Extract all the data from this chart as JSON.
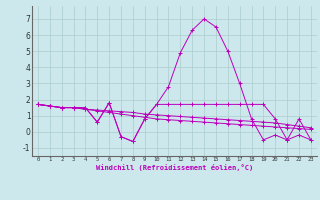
{
  "xlabel": "Windchill (Refroidissement éolien,°C)",
  "background_color": "#cce8ec",
  "grid_color": "#aacccc",
  "line_color": "#bb00bb",
  "x_data": [
    0,
    1,
    2,
    3,
    4,
    5,
    6,
    7,
    8,
    9,
    10,
    11,
    12,
    13,
    14,
    15,
    16,
    17,
    18,
    19,
    20,
    21,
    22,
    23
  ],
  "series": [
    [
      1.7,
      1.6,
      1.5,
      1.5,
      1.5,
      0.6,
      1.8,
      -0.3,
      -0.6,
      0.8,
      1.7,
      2.8,
      4.9,
      6.3,
      7.0,
      6.5,
      5.0,
      3.0,
      0.8,
      -0.5,
      -0.2,
      -0.5,
      0.8,
      -0.5
    ],
    [
      1.7,
      1.6,
      1.5,
      1.5,
      1.5,
      0.6,
      1.8,
      -0.3,
      -0.6,
      0.8,
      1.7,
      1.7,
      1.7,
      1.7,
      1.7,
      1.7,
      1.7,
      1.7,
      1.7,
      1.7,
      0.8,
      -0.5,
      -0.2,
      -0.5
    ],
    [
      1.7,
      1.6,
      1.5,
      1.5,
      1.4,
      1.3,
      1.2,
      1.1,
      1.0,
      0.9,
      0.8,
      0.75,
      0.7,
      0.65,
      0.6,
      0.55,
      0.5,
      0.45,
      0.4,
      0.35,
      0.3,
      0.25,
      0.2,
      0.15
    ],
    [
      1.7,
      1.6,
      1.5,
      1.5,
      1.4,
      1.35,
      1.3,
      1.25,
      1.2,
      1.1,
      1.05,
      1.0,
      0.95,
      0.9,
      0.85,
      0.8,
      0.75,
      0.7,
      0.65,
      0.6,
      0.55,
      0.45,
      0.35,
      0.25
    ]
  ],
  "ylim": [
    -1.5,
    7.8
  ],
  "xlim": [
    -0.5,
    23.5
  ],
  "yticks": [
    -1,
    0,
    1,
    2,
    3,
    4,
    5,
    6,
    7
  ],
  "xticks": [
    0,
    1,
    2,
    3,
    4,
    5,
    6,
    7,
    8,
    9,
    10,
    11,
    12,
    13,
    14,
    15,
    16,
    17,
    18,
    19,
    20,
    21,
    22,
    23
  ],
  "xtick_labels": [
    "0",
    "1",
    "2",
    "3",
    "4",
    "5",
    "6",
    "7",
    "8",
    "9",
    "10",
    "11",
    "12",
    "13",
    "14",
    "15",
    "16",
    "17",
    "18",
    "19",
    "20",
    "21",
    "22",
    "23"
  ]
}
